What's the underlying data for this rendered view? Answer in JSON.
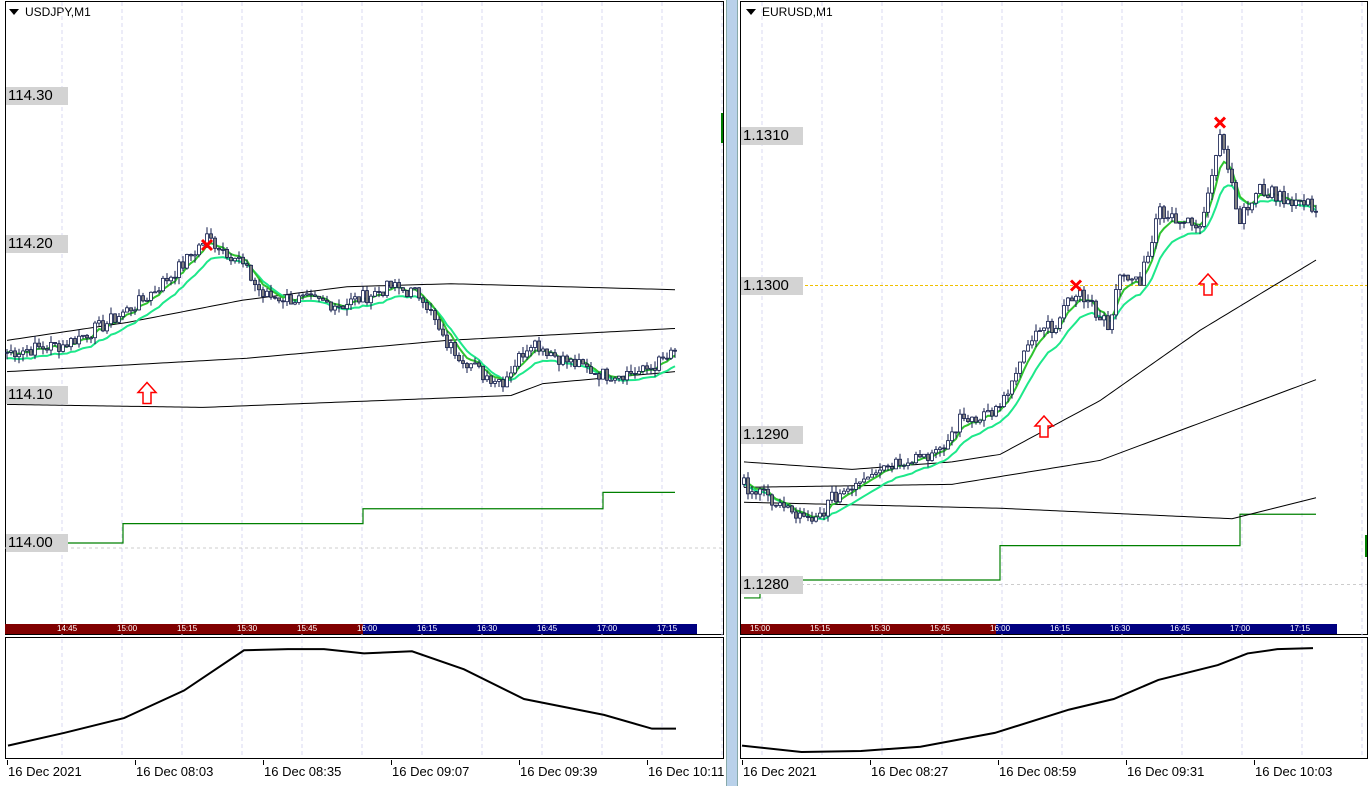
{
  "colors": {
    "bull_ma": "#2fc42f",
    "slow_ma": "#1de88a",
    "candle_outline": "#0f1a4a",
    "bear_body": "#808080",
    "step": "#008000",
    "level": "#f0c000",
    "marker": "#ff0000",
    "session_red": "#800000",
    "session_blue": "#000080"
  },
  "charts": [
    {
      "title": "USDJPY,M1",
      "price_labels": [
        {
          "value": "114.30",
          "price": 114.3
        },
        {
          "value": "114.20",
          "price": 114.2
        },
        {
          "value": "114.10",
          "price": 114.1
        },
        {
          "value": "114.00",
          "price": 114.0
        }
      ],
      "time_bar": {
        "labels": [
          "14:45",
          "15:00",
          "15:15",
          "15:30",
          "15:45",
          "16:00",
          "16:15",
          "16:30",
          "16:45",
          "17:00",
          "17:15"
        ],
        "red_until_label": 5
      },
      "axis_labels": [
        "16 Dec 2021",
        "16 Dec 08:03",
        "16 Dec 08:35",
        "16 Dec 09:07",
        "16 Dec 09:39",
        "16 Dec 10:11"
      ],
      "bars": 168,
      "price_path": [
        [
          0,
          114.128
        ],
        [
          14,
          114.133
        ],
        [
          24,
          114.146
        ],
        [
          34,
          114.163
        ],
        [
          44,
          114.187
        ],
        [
          50,
          114.205
        ],
        [
          58,
          114.19
        ],
        [
          64,
          114.166
        ],
        [
          74,
          114.163
        ],
        [
          84,
          114.16
        ],
        [
          96,
          114.172
        ],
        [
          104,
          114.166
        ],
        [
          109,
          114.136
        ],
        [
          119,
          114.113
        ],
        [
          124,
          114.109
        ],
        [
          131,
          114.136
        ],
        [
          139,
          114.123
        ],
        [
          149,
          114.113
        ],
        [
          159,
          114.115
        ],
        [
          167,
          114.127
        ]
      ],
      "ma_lines": [
        [
          [
            0,
            114.136
          ],
          [
            30,
            114.148
          ],
          [
            59,
            114.163
          ],
          [
            85,
            114.172
          ],
          [
            111,
            114.174
          ],
          [
            167,
            114.17
          ]
        ],
        [
          [
            0,
            114.115
          ],
          [
            60,
            114.124
          ],
          [
            110,
            114.136
          ],
          [
            167,
            114.144
          ]
        ],
        [
          [
            0,
            114.093
          ],
          [
            49,
            114.091
          ],
          [
            126,
            114.099
          ],
          [
            134,
            114.107
          ],
          [
            167,
            114.115
          ]
        ]
      ],
      "step_line": [
        [
          0,
          114.0
        ],
        [
          29,
          114.013
        ],
        [
          89,
          114.023
        ],
        [
          149,
          114.034
        ],
        [
          167,
          114.034
        ]
      ],
      "markers": [
        {
          "type": "cross",
          "bar": 50,
          "price": 114.2
        },
        {
          "type": "arrow-up",
          "bar": 35,
          "price": 114.101
        }
      ],
      "oscillator": [
        [
          0,
          6
        ],
        [
          14,
          18
        ],
        [
          29,
          32
        ],
        [
          44,
          58
        ],
        [
          59,
          96
        ],
        [
          70,
          97
        ],
        [
          79,
          97
        ],
        [
          89,
          93
        ],
        [
          101,
          95
        ],
        [
          114,
          78
        ],
        [
          129,
          50
        ],
        [
          149,
          35
        ],
        [
          161,
          22
        ],
        [
          167,
          22
        ]
      ]
    },
    {
      "title": "EURUSD,M1",
      "price_labels": [
        {
          "value": "1.1310",
          "price": 1.131
        },
        {
          "value": "1.1300",
          "price": 1.13
        },
        {
          "value": "1.1290",
          "price": 1.129
        },
        {
          "value": "1.1280",
          "price": 1.128
        }
      ],
      "time_bar": {
        "labels": [
          "15:00",
          "15:15",
          "15:30",
          "15:45",
          "16:00",
          "16:15",
          "16:30",
          "16:45",
          "17:00",
          "17:15"
        ],
        "red_until_label": 4
      },
      "axis_labels": [
        "16 Dec 2021",
        "16 Dec 08:27",
        "16 Dec 08:59",
        "16 Dec 09:31",
        "16 Dec 10:03"
      ],
      "bars": 144,
      "price_path": [
        [
          0,
          1.12867
        ],
        [
          17,
          1.1284
        ],
        [
          22,
          1.12857
        ],
        [
          32,
          1.12877
        ],
        [
          44,
          1.12887
        ],
        [
          49,
          1.12887
        ],
        [
          54,
          1.1291
        ],
        [
          64,
          1.12917
        ],
        [
          72,
          1.12964
        ],
        [
          79,
          1.12977
        ],
        [
          83,
          1.12997
        ],
        [
          91,
          1.12974
        ],
        [
          94,
          1.13004
        ],
        [
          99,
          1.13004
        ],
        [
          104,
          1.13051
        ],
        [
          114,
          1.13037
        ],
        [
          119,
          1.13104
        ],
        [
          124,
          1.13044
        ],
        [
          129,
          1.13064
        ],
        [
          143,
          1.13052
        ]
      ],
      "ma_lines": [
        [
          [
            0,
            1.12882
          ],
          [
            27,
            1.12877
          ],
          [
            52,
            1.12882
          ],
          [
            64,
            1.12887
          ],
          [
            89,
            1.12923
          ],
          [
            114,
            1.1297
          ],
          [
            143,
            1.13017
          ]
        ],
        [
          [
            0,
            1.12865
          ],
          [
            52,
            1.12867
          ],
          [
            89,
            1.12883
          ],
          [
            143,
            1.12937
          ]
        ],
        [
          [
            0,
            1.12855
          ],
          [
            64,
            1.12851
          ],
          [
            122,
            1.12844
          ],
          [
            143,
            1.12858
          ]
        ]
      ],
      "step_line": [
        [
          0,
          1.12791
        ],
        [
          4,
          1.12803
        ],
        [
          64,
          1.12826
        ],
        [
          124,
          1.12847
        ],
        [
          143,
          1.12847
        ]
      ],
      "level_line": 1.13,
      "markers": [
        {
          "type": "cross",
          "bar": 83,
          "price": 1.13,
          "ok": 1
        },
        {
          "type": "cross",
          "bar": 119,
          "price": 1.13109
        },
        {
          "type": "arrow-up",
          "bar": 75,
          "price": 1.12906
        },
        {
          "type": "arrow-up",
          "bar": 116,
          "price": 1.13001
        }
      ],
      "oscillator": [
        [
          0,
          6
        ],
        [
          20,
          0
        ],
        [
          40,
          1
        ],
        [
          60,
          5
        ],
        [
          85,
          18
        ],
        [
          110,
          40
        ],
        [
          125,
          50
        ],
        [
          140,
          68
        ],
        [
          160,
          82
        ],
        [
          170,
          93
        ],
        [
          180,
          97
        ],
        [
          192,
          98
        ]
      ]
    }
  ]
}
